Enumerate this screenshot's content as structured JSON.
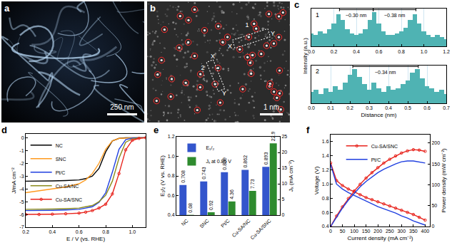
{
  "images": [
    {
      "panel": "a",
      "scale_bar": "250 nm"
    },
    {
      "panel": "b",
      "scale_bar": "1 nm",
      "labels": [
        "1",
        "X",
        "Y",
        "2",
        "X",
        "Y"
      ]
    }
  ],
  "chart_data": [
    {
      "panel": "c",
      "type": "bar",
      "x_label": "Distance (nm)",
      "y_label": "Intensity (a.u.)",
      "tick_labels": "x",
      "grid": true,
      "color": "#4fb3b3",
      "subplots": [
        {
          "name": "1",
          "x": [
            0,
            0.04,
            0.08,
            0.12,
            0.16,
            0.2,
            0.24,
            0.28,
            0.32,
            0.36,
            0.4,
            0.44,
            0.48,
            0.52,
            0.56,
            0.6,
            0.64,
            0.68,
            0.72,
            0.76,
            0.8,
            0.84,
            0.88,
            0.92,
            0.96,
            1.0,
            1.04,
            1.08,
            1.12,
            1.16,
            1.2
          ],
          "values": [
            0.35,
            0.3,
            0.4,
            0.35,
            0.45,
            0.6,
            0.85,
            0.7,
            0.45,
            0.35,
            0.3,
            0.35,
            0.45,
            0.7,
            0.9,
            0.6,
            0.4,
            0.3,
            0.3,
            0.35,
            0.4,
            0.5,
            0.7,
            0.85,
            0.6,
            0.4,
            0.3,
            0.25,
            0.3,
            0.25,
            0.2
          ],
          "xlim": [
            0,
            1.2
          ],
          "xticks": [
            {
              "value": 0,
              "label": "0.0"
            },
            0.2,
            0.4,
            0.6,
            0.8,
            {
              "value": 1,
              "label": "1.0"
            },
            1.2
          ],
          "ylim": [
            0,
            1
          ],
          "annotations": [
            {
              "text": "~0.30 nm",
              "x": [
                0.25,
                0.55
              ]
            },
            {
              "text": "~0.38 nm",
              "x": [
                0.55,
                0.93
              ]
            }
          ]
        },
        {
          "name": "2",
          "x": [
            0,
            0.025,
            0.05,
            0.075,
            0.1,
            0.125,
            0.15,
            0.175,
            0.2,
            0.225,
            0.25,
            0.275,
            0.3,
            0.325,
            0.35,
            0.375,
            0.4,
            0.425,
            0.45,
            0.475,
            0.5,
            0.525,
            0.55,
            0.575,
            0.6,
            0.625,
            0.65,
            0.675,
            0.7
          ],
          "values": [
            0.3,
            0.35,
            0.25,
            0.4,
            0.3,
            0.45,
            0.35,
            0.55,
            0.75,
            0.9,
            0.7,
            0.5,
            0.35,
            0.55,
            0.4,
            0.3,
            0.45,
            0.35,
            0.4,
            0.5,
            0.6,
            0.8,
            0.9,
            0.65,
            0.45,
            0.4,
            0.3,
            0.35,
            0.25
          ],
          "xlim": [
            0,
            0.7
          ],
          "xticks": [
            {
              "value": 0,
              "label": "0.0"
            },
            0.1,
            0.2,
            0.3,
            0.4,
            0.5,
            0.6,
            0.7
          ],
          "ylim": [
            0,
            1
          ],
          "annotations": [
            {
              "text": "~0.34 nm",
              "x": [
                0.215,
                0.555
              ]
            }
          ]
        }
      ]
    },
    {
      "panel": "d",
      "type": "line",
      "x_label": "E / V (vs. RHE)",
      "y_label": "J/mA cm⁻²",
      "legend": "top left",
      "x": [
        0.2,
        0.3,
        0.4,
        0.5,
        0.6,
        0.65,
        0.7,
        0.75,
        0.8,
        0.85,
        0.9,
        0.95,
        1.0,
        1.05,
        1.1
      ],
      "series": [
        {
          "name": "NC",
          "color": "#000000",
          "values": [
            -3.4,
            -3.4,
            -3.38,
            -3.35,
            -3.3,
            -3.2,
            -3.0,
            -2.4,
            -1.1,
            -0.25,
            -0.05,
            0,
            0,
            0,
            0
          ]
        },
        {
          "name": "SNC",
          "color": "#ff9a1f",
          "values": [
            -4.3,
            -4.15,
            -4.0,
            -3.85,
            -3.6,
            -3.3,
            -2.8,
            -2.0,
            -0.9,
            -0.25,
            -0.05,
            -0.02,
            0,
            0,
            0
          ]
        },
        {
          "name": "Pt/C",
          "color": "#1f3fe0",
          "values": [
            -5.7,
            -5.7,
            -5.68,
            -5.65,
            -5.6,
            -5.5,
            -5.4,
            -5.05,
            -4.3,
            -2.7,
            -0.9,
            -0.15,
            -0.03,
            0,
            0
          ]
        },
        {
          "name": "Cu-SA/NC",
          "color": "#8c8c1e",
          "values": [
            -5.6,
            -5.6,
            -5.58,
            -5.55,
            -5.5,
            -5.4,
            -5.3,
            -5.0,
            -4.5,
            -3.4,
            -1.6,
            -0.35,
            -0.08,
            -0.02,
            0
          ]
        },
        {
          "name": "Cu-SA/SNC",
          "color": "#e8231c",
          "marker": "circle",
          "values": [
            -6.0,
            -6.0,
            -5.98,
            -5.95,
            -5.9,
            -5.82,
            -5.7,
            -5.5,
            -5.2,
            -4.4,
            -2.8,
            -0.95,
            -0.2,
            -0.05,
            0
          ]
        }
      ],
      "xlim": [
        0.2,
        1.1
      ],
      "xticks": [
        0.2,
        0.4,
        0.6,
        0.8,
        {
          "value": 1,
          "label": "1.0"
        }
      ],
      "ylim": [
        -7,
        0.3
      ],
      "yticks": [
        0,
        -1,
        -2,
        -3,
        -4,
        -5,
        -6,
        -7
      ]
    },
    {
      "panel": "e",
      "type": "bar",
      "y_label": "E₁/₂ (V vs. RHE)",
      "y2_label": "Jₖ (mA cm⁻²)",
      "legend": "top left",
      "data_labels": true,
      "categories": [
        "NC",
        "SNC",
        "Pt/C",
        "Cu-SA/NC",
        "Cu-SA/SNC"
      ],
      "series": [
        {
          "name": "E₁/₂",
          "color": "#3355cc",
          "values": [
            0.708,
            0.743,
            0.839,
            0.862,
            0.893
          ]
        },
        {
          "name": "Jₖ at 0.85 V",
          "color": "#2e8b2e",
          "axis": "y2",
          "values": [
            0.08,
            0.92,
            4.36,
            7.73,
            22.9
          ]
        }
      ],
      "ylim": [
        0.4,
        1.2
      ],
      "yticks": [
        0.4,
        0.6,
        0.8,
        {
          "value": 1,
          "label": "1.0"
        },
        1.2
      ],
      "y2lim": [
        0,
        25
      ],
      "y2ticks": [
        0,
        5,
        10,
        15,
        20,
        25
      ]
    },
    {
      "panel": "f",
      "type": "line",
      "x_label": "Current density (mA cm⁻²)",
      "y_label": "Voltage (V)",
      "y2_label": "Power density (mW cm⁻²)",
      "legend": "top",
      "x": [
        0,
        25,
        50,
        75,
        100,
        125,
        150,
        175,
        200,
        225,
        250,
        275,
        300,
        325,
        350,
        375,
        400
      ],
      "series": [
        {
          "name": "Cu-SA/SNC",
          "color": "#e8231c",
          "marker": "circle",
          "values": [
            1.3,
            1.05,
            0.98,
            0.93,
            0.89,
            0.85,
            0.81,
            0.78,
            0.75,
            0.72,
            0.69,
            0.66,
            0.63,
            0.6,
            0.57,
            0.53,
            0.49
          ]
        },
        {
          "name": "Pt/C",
          "color": "#1f3fe0",
          "values": [
            1.28,
            1.0,
            0.93,
            0.88,
            0.84,
            0.8,
            0.76,
            0.72,
            0.68,
            0.65,
            0.62,
            0.59,
            0.55,
            0.52,
            0.48,
            0.45,
            0.42
          ]
        },
        {
          "name": "Cu-SA/SNC",
          "color": "#e8231c",
          "marker": "circle",
          "axis": "y2",
          "values": [
            0,
            25,
            47,
            67,
            85,
            101,
            116,
            129,
            141,
            152,
            161,
            169,
            176,
            181,
            184,
            183,
            180
          ]
        },
        {
          "name": "Pt/C",
          "color": "#1f3fe0",
          "axis": "y2",
          "values": [
            0,
            23,
            44,
            63,
            80,
            95,
            108,
            119,
            129,
            137,
            144,
            150,
            155,
            157,
            157,
            155,
            152
          ]
        }
      ],
      "xlim": [
        0,
        420
      ],
      "xticks": [
        0,
        50,
        100,
        150,
        200,
        250,
        300,
        350,
        400
      ],
      "ylim": [
        0.4,
        1.7
      ],
      "yticks": [
        0.4,
        0.6,
        0.8,
        {
          "value": 1,
          "label": "1.0"
        },
        1.2,
        1.4,
        1.6
      ],
      "y2lim": [
        0,
        220
      ],
      "y2ticks": [
        0,
        50,
        100,
        150,
        200
      ]
    }
  ]
}
